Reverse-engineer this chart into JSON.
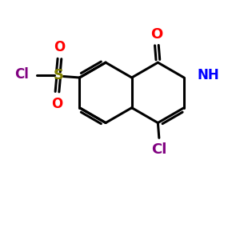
{
  "background_color": "#ffffff",
  "bond_color": "#000000",
  "bond_lw": 2.2,
  "S_color": "#808000",
  "Cl_color": "#800080",
  "O_color": "#ff0000",
  "N_color": "#0000ff",
  "font_size": 12,
  "fig_size": [
    3.0,
    3.0
  ],
  "dpi": 100,
  "xlim": [
    0,
    10
  ],
  "ylim": [
    0,
    10
  ]
}
